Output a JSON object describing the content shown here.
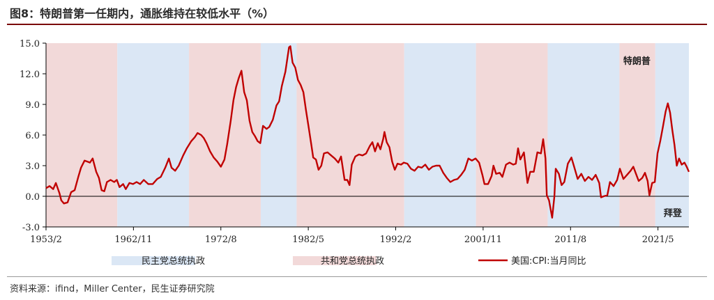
{
  "title": "图8：特朗普第一任期内，通胀维持在较低水平（%）",
  "source": "资料来源：ifind，Miller Center，民生证券研究院",
  "colors": {
    "democrat": "#dbe7f5",
    "republican": "#f2d9d9",
    "line": "#c00000",
    "rule": "#7a0a0a"
  },
  "chart_data": {
    "type": "line",
    "title": "",
    "xlabel": "",
    "ylabel": "",
    "ylim": [
      -3.0,
      15.0
    ],
    "xlim": [
      1953.1,
      2024.8
    ],
    "yticks": [
      "15.0",
      "12.0",
      "9.0",
      "6.0",
      "3.0",
      "0.0",
      "-3.0"
    ],
    "ytick_values": [
      15,
      12,
      9,
      6,
      3,
      0,
      -3
    ],
    "xticks": [
      "1953/2",
      "1962/11",
      "1972/8",
      "1982/5",
      "1992/2",
      "2001/11",
      "2011/8",
      "2021/5"
    ],
    "xtick_values": [
      1953.1,
      1962.85,
      1972.6,
      1982.35,
      1992.1,
      2001.85,
      2011.6,
      2021.35
    ],
    "grid": false,
    "legend_position": "bottom",
    "legend": {
      "democrat": "民主党总统执政",
      "republican": "共和党总统执政",
      "series": "美国:CPI:当月同比"
    },
    "annotations": [
      {
        "text": "特朗普",
        "x": 2019.0,
        "y": 13.3
      },
      {
        "text": "拜登",
        "x": 2023.0,
        "y": -1.6
      }
    ],
    "periods": [
      {
        "party": "republican",
        "start": 1953.1,
        "end": 1961.05
      },
      {
        "party": "democrat",
        "start": 1961.05,
        "end": 1969.05
      },
      {
        "party": "republican",
        "start": 1969.05,
        "end": 1977.05
      },
      {
        "party": "democrat",
        "start": 1977.05,
        "end": 1981.05
      },
      {
        "party": "republican",
        "start": 1981.05,
        "end": 1993.05
      },
      {
        "party": "democrat",
        "start": 1993.05,
        "end": 2001.05
      },
      {
        "party": "republican",
        "start": 2001.05,
        "end": 2009.05
      },
      {
        "party": "democrat",
        "start": 2009.05,
        "end": 2017.05
      },
      {
        "party": "republican",
        "start": 2017.05,
        "end": 2021.05
      },
      {
        "party": "democrat",
        "start": 2021.05,
        "end": 2024.8
      }
    ],
    "series": [
      {
        "name": "美国:CPI:当月同比",
        "points": [
          [
            1953.1,
            0.8
          ],
          [
            1953.5,
            1.0
          ],
          [
            1953.9,
            0.7
          ],
          [
            1954.2,
            1.3
          ],
          [
            1954.6,
            0.3
          ],
          [
            1954.8,
            -0.4
          ],
          [
            1955.1,
            -0.7
          ],
          [
            1955.5,
            -0.6
          ],
          [
            1955.9,
            0.4
          ],
          [
            1956.3,
            0.6
          ],
          [
            1956.7,
            1.9
          ],
          [
            1957.0,
            2.8
          ],
          [
            1957.4,
            3.5
          ],
          [
            1957.7,
            3.4
          ],
          [
            1958.0,
            3.3
          ],
          [
            1958.3,
            3.7
          ],
          [
            1958.7,
            2.4
          ],
          [
            1959.0,
            1.8
          ],
          [
            1959.3,
            0.6
          ],
          [
            1959.6,
            0.5
          ],
          [
            1959.9,
            1.4
          ],
          [
            1960.3,
            1.6
          ],
          [
            1960.7,
            1.4
          ],
          [
            1961.0,
            1.6
          ],
          [
            1961.3,
            0.9
          ],
          [
            1961.7,
            1.2
          ],
          [
            1962.0,
            0.7
          ],
          [
            1962.4,
            1.3
          ],
          [
            1962.8,
            1.2
          ],
          [
            1963.2,
            1.4
          ],
          [
            1963.6,
            1.2
          ],
          [
            1964.0,
            1.6
          ],
          [
            1964.5,
            1.2
          ],
          [
            1965.0,
            1.2
          ],
          [
            1965.5,
            1.7
          ],
          [
            1965.9,
            1.9
          ],
          [
            1966.4,
            2.8
          ],
          [
            1966.8,
            3.7
          ],
          [
            1967.1,
            2.8
          ],
          [
            1967.5,
            2.5
          ],
          [
            1967.9,
            3.0
          ],
          [
            1968.4,
            4.0
          ],
          [
            1968.8,
            4.7
          ],
          [
            1969.3,
            5.4
          ],
          [
            1969.7,
            5.8
          ],
          [
            1970.0,
            6.2
          ],
          [
            1970.4,
            6.0
          ],
          [
            1970.7,
            5.7
          ],
          [
            1971.0,
            5.2
          ],
          [
            1971.4,
            4.4
          ],
          [
            1971.8,
            3.8
          ],
          [
            1972.2,
            3.4
          ],
          [
            1972.6,
            2.9
          ],
          [
            1973.0,
            3.6
          ],
          [
            1973.3,
            5.1
          ],
          [
            1973.7,
            7.4
          ],
          [
            1974.0,
            9.4
          ],
          [
            1974.3,
            10.7
          ],
          [
            1974.6,
            11.6
          ],
          [
            1974.9,
            12.3
          ],
          [
            1975.2,
            10.2
          ],
          [
            1975.5,
            9.4
          ],
          [
            1975.8,
            7.4
          ],
          [
            1976.1,
            6.3
          ],
          [
            1976.4,
            5.9
          ],
          [
            1976.7,
            5.4
          ],
          [
            1977.0,
            5.2
          ],
          [
            1977.3,
            6.9
          ],
          [
            1977.7,
            6.6
          ],
          [
            1978.0,
            6.8
          ],
          [
            1978.4,
            7.5
          ],
          [
            1978.8,
            8.9
          ],
          [
            1979.1,
            9.3
          ],
          [
            1979.4,
            10.8
          ],
          [
            1979.8,
            12.2
          ],
          [
            1980.2,
            14.6
          ],
          [
            1980.35,
            14.7
          ],
          [
            1980.6,
            13.1
          ],
          [
            1980.9,
            12.6
          ],
          [
            1981.2,
            11.4
          ],
          [
            1981.5,
            10.9
          ],
          [
            1981.8,
            10.2
          ],
          [
            1982.1,
            8.4
          ],
          [
            1982.4,
            6.7
          ],
          [
            1982.7,
            5.0
          ],
          [
            1982.9,
            3.8
          ],
          [
            1983.2,
            3.6
          ],
          [
            1983.5,
            2.6
          ],
          [
            1983.8,
            3.0
          ],
          [
            1984.1,
            4.2
          ],
          [
            1984.5,
            4.3
          ],
          [
            1984.9,
            4.0
          ],
          [
            1985.3,
            3.7
          ],
          [
            1985.7,
            3.3
          ],
          [
            1986.0,
            3.9
          ],
          [
            1986.4,
            1.6
          ],
          [
            1986.7,
            1.6
          ],
          [
            1986.95,
            1.1
          ],
          [
            1987.2,
            3.1
          ],
          [
            1987.6,
            3.9
          ],
          [
            1988.0,
            4.1
          ],
          [
            1988.4,
            4.0
          ],
          [
            1988.8,
            4.2
          ],
          [
            1989.2,
            4.9
          ],
          [
            1989.5,
            5.3
          ],
          [
            1989.8,
            4.4
          ],
          [
            1990.1,
            5.2
          ],
          [
            1990.4,
            4.6
          ],
          [
            1990.7,
            5.6
          ],
          [
            1990.85,
            6.3
          ],
          [
            1991.1,
            5.3
          ],
          [
            1991.4,
            4.8
          ],
          [
            1991.7,
            3.4
          ],
          [
            1992.0,
            2.6
          ],
          [
            1992.3,
            3.2
          ],
          [
            1992.7,
            3.1
          ],
          [
            1993.0,
            3.3
          ],
          [
            1993.4,
            3.2
          ],
          [
            1993.8,
            2.7
          ],
          [
            1994.2,
            2.5
          ],
          [
            1994.6,
            2.9
          ],
          [
            1995.0,
            2.8
          ],
          [
            1995.4,
            3.1
          ],
          [
            1995.8,
            2.6
          ],
          [
            1996.2,
            2.9
          ],
          [
            1996.6,
            3.0
          ],
          [
            1997.0,
            3.0
          ],
          [
            1997.4,
            2.3
          ],
          [
            1997.8,
            1.8
          ],
          [
            1998.2,
            1.4
          ],
          [
            1998.6,
            1.6
          ],
          [
            1999.0,
            1.7
          ],
          [
            1999.4,
            2.1
          ],
          [
            1999.8,
            2.6
          ],
          [
            2000.2,
            3.7
          ],
          [
            2000.6,
            3.5
          ],
          [
            2001.0,
            3.7
          ],
          [
            2001.4,
            3.3
          ],
          [
            2001.8,
            2.0
          ],
          [
            2002.0,
            1.2
          ],
          [
            2002.4,
            1.2
          ],
          [
            2002.8,
            2.0
          ],
          [
            2003.0,
            3.0
          ],
          [
            2003.3,
            2.2
          ],
          [
            2003.7,
            2.3
          ],
          [
            2004.0,
            1.9
          ],
          [
            2004.4,
            3.1
          ],
          [
            2004.8,
            3.3
          ],
          [
            2005.2,
            3.1
          ],
          [
            2005.5,
            3.2
          ],
          [
            2005.75,
            4.7
          ],
          [
            2006.0,
            3.6
          ],
          [
            2006.4,
            4.3
          ],
          [
            2006.8,
            1.3
          ],
          [
            2007.1,
            2.4
          ],
          [
            2007.5,
            2.4
          ],
          [
            2007.9,
            4.3
          ],
          [
            2008.3,
            4.2
          ],
          [
            2008.55,
            5.6
          ],
          [
            2008.8,
            3.7
          ],
          [
            2008.95,
            0.1
          ],
          [
            2009.2,
            -0.4
          ],
          [
            2009.55,
            -2.1
          ],
          [
            2009.8,
            0.0
          ],
          [
            2009.95,
            2.7
          ],
          [
            2010.3,
            2.2
          ],
          [
            2010.6,
            1.1
          ],
          [
            2010.9,
            1.4
          ],
          [
            2011.3,
            3.2
          ],
          [
            2011.7,
            3.8
          ],
          [
            2012.0,
            2.9
          ],
          [
            2012.4,
            1.7
          ],
          [
            2012.8,
            2.2
          ],
          [
            2013.2,
            1.5
          ],
          [
            2013.6,
            1.9
          ],
          [
            2014.0,
            1.6
          ],
          [
            2014.4,
            2.1
          ],
          [
            2014.8,
            1.3
          ],
          [
            2015.0,
            -0.1
          ],
          [
            2015.3,
            0.0
          ],
          [
            2015.7,
            0.1
          ],
          [
            2016.0,
            1.4
          ],
          [
            2016.4,
            1.0
          ],
          [
            2016.8,
            1.6
          ],
          [
            2017.1,
            2.7
          ],
          [
            2017.5,
            1.7
          ],
          [
            2017.9,
            2.1
          ],
          [
            2018.3,
            2.5
          ],
          [
            2018.6,
            2.9
          ],
          [
            2018.9,
            2.2
          ],
          [
            2019.2,
            1.5
          ],
          [
            2019.6,
            1.8
          ],
          [
            2019.9,
            2.3
          ],
          [
            2020.2,
            1.5
          ],
          [
            2020.4,
            0.1
          ],
          [
            2020.7,
            1.3
          ],
          [
            2021.0,
            1.4
          ],
          [
            2021.3,
            4.2
          ],
          [
            2021.6,
            5.4
          ],
          [
            2021.9,
            6.8
          ],
          [
            2022.2,
            8.3
          ],
          [
            2022.45,
            9.1
          ],
          [
            2022.7,
            8.2
          ],
          [
            2022.95,
            6.5
          ],
          [
            2023.2,
            5.0
          ],
          [
            2023.45,
            3.0
          ],
          [
            2023.7,
            3.7
          ],
          [
            2024.0,
            3.1
          ],
          [
            2024.3,
            3.3
          ],
          [
            2024.55,
            2.9
          ],
          [
            2024.8,
            2.4
          ]
        ]
      }
    ]
  }
}
